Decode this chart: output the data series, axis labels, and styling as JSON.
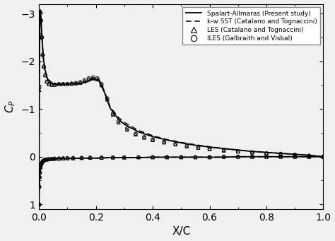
{
  "title": "",
  "xlabel": "X/C",
  "ylabel": "$C_P$",
  "xlim": [
    0,
    1.0
  ],
  "ylim": [
    1.1,
    -3.2
  ],
  "yticks": [
    -3,
    -2,
    -1,
    0,
    1
  ],
  "xticks": [
    0.0,
    0.2,
    0.4,
    0.6,
    0.8,
    1.0
  ],
  "line_color": "#000000",
  "background_color": "#f0f0f0",
  "figsize": [
    4.74,
    3.41
  ],
  "dpi": 100,
  "legend_labels": [
    "Spalart-Allmaras (Present study)",
    "k-w SST (Catalano and Tognaccini)",
    "LES (Catalano and Tognaccini)",
    "ILES (Galbraith and Visbal)"
  ],
  "upper_sa_x": [
    0.0,
    0.001,
    0.003,
    0.005,
    0.007,
    0.01,
    0.015,
    0.02,
    0.03,
    0.05,
    0.07,
    0.1,
    0.13,
    0.15,
    0.17,
    0.19,
    0.21,
    0.23,
    0.25,
    0.28,
    0.3,
    0.35,
    0.4,
    0.45,
    0.5,
    0.55,
    0.6,
    0.65,
    0.7,
    0.75,
    0.8,
    0.85,
    0.9,
    0.95,
    1.0
  ],
  "upper_sa_y": [
    1.0,
    -1.5,
    -2.8,
    -3.05,
    -2.9,
    -2.55,
    -2.1,
    -1.85,
    -1.63,
    -1.52,
    -1.52,
    -1.52,
    -1.53,
    -1.54,
    -1.57,
    -1.63,
    -1.6,
    -1.35,
    -1.02,
    -0.78,
    -0.68,
    -0.52,
    -0.42,
    -0.35,
    -0.29,
    -0.24,
    -0.2,
    -0.17,
    -0.14,
    -0.11,
    -0.09,
    -0.07,
    -0.05,
    -0.03,
    0.0
  ],
  "upper_kw_x": [
    0.0,
    0.001,
    0.003,
    0.005,
    0.007,
    0.01,
    0.015,
    0.02,
    0.03,
    0.05,
    0.07,
    0.1,
    0.13,
    0.15,
    0.17,
    0.19,
    0.21,
    0.23,
    0.25,
    0.28,
    0.3,
    0.35,
    0.4,
    0.45,
    0.5,
    0.55,
    0.6,
    0.65,
    0.7,
    0.75,
    0.8,
    0.85,
    0.9,
    0.95,
    1.0
  ],
  "upper_kw_y": [
    1.0,
    -1.5,
    -2.75,
    -3.0,
    -2.88,
    -2.52,
    -2.08,
    -1.83,
    -1.62,
    -1.52,
    -1.52,
    -1.52,
    -1.53,
    -1.54,
    -1.58,
    -1.65,
    -1.63,
    -1.38,
    -1.05,
    -0.82,
    -0.72,
    -0.55,
    -0.44,
    -0.36,
    -0.3,
    -0.25,
    -0.21,
    -0.17,
    -0.14,
    -0.11,
    -0.09,
    -0.07,
    -0.05,
    -0.03,
    0.0
  ],
  "lower_sa_x": [
    0.0,
    0.001,
    0.003,
    0.005,
    0.007,
    0.01,
    0.015,
    0.02,
    0.03,
    0.05,
    0.07,
    0.1,
    0.15,
    0.2,
    0.25,
    0.3,
    0.35,
    0.4,
    0.45,
    0.5,
    0.55,
    0.6,
    0.65,
    0.7,
    0.75,
    0.8,
    0.85,
    0.9,
    0.95,
    1.0
  ],
  "lower_sa_y": [
    1.0,
    0.6,
    0.38,
    0.28,
    0.2,
    0.14,
    0.1,
    0.08,
    0.06,
    0.05,
    0.04,
    0.04,
    0.03,
    0.03,
    0.02,
    0.02,
    0.02,
    0.01,
    0.01,
    0.01,
    0.01,
    0.01,
    0.01,
    0.0,
    0.0,
    0.0,
    0.0,
    0.0,
    0.0,
    0.0
  ],
  "upper_scatter_x": [
    0.0,
    0.001,
    0.002,
    0.003,
    0.005,
    0.007,
    0.01,
    0.013,
    0.017,
    0.022,
    0.028,
    0.035,
    0.045,
    0.055,
    0.07,
    0.085,
    0.1,
    0.115,
    0.13,
    0.145,
    0.16,
    0.175,
    0.19,
    0.205,
    0.22,
    0.24,
    0.26,
    0.28,
    0.31,
    0.34,
    0.37,
    0.4,
    0.44,
    0.48,
    0.52,
    0.56,
    0.6,
    0.65,
    0.7,
    0.75,
    0.8,
    0.85,
    0.9,
    0.95,
    1.0
  ],
  "upper_les_y": [
    1.0,
    -1.4,
    -2.5,
    -2.82,
    -3.05,
    -2.88,
    -2.52,
    -2.15,
    -1.9,
    -1.72,
    -1.58,
    -1.52,
    -1.51,
    -1.51,
    -1.52,
    -1.52,
    -1.52,
    -1.53,
    -1.54,
    -1.55,
    -1.58,
    -1.62,
    -1.64,
    -1.62,
    -1.5,
    -1.2,
    -0.88,
    -0.72,
    -0.57,
    -0.47,
    -0.4,
    -0.35,
    -0.3,
    -0.26,
    -0.22,
    -0.19,
    -0.16,
    -0.13,
    -0.11,
    -0.09,
    -0.07,
    -0.05,
    -0.04,
    -0.02,
    0.0
  ],
  "upper_iles_y": [
    1.0,
    -1.45,
    -2.55,
    -2.85,
    -3.02,
    -2.85,
    -2.5,
    -2.13,
    -1.88,
    -1.7,
    -1.57,
    -1.52,
    -1.51,
    -1.51,
    -1.52,
    -1.52,
    -1.52,
    -1.53,
    -1.54,
    -1.56,
    -1.6,
    -1.64,
    -1.66,
    -1.64,
    -1.52,
    -1.22,
    -0.9,
    -0.74,
    -0.59,
    -0.48,
    -0.41,
    -0.36,
    -0.31,
    -0.27,
    -0.23,
    -0.19,
    -0.16,
    -0.14,
    -0.11,
    -0.09,
    -0.07,
    -0.06,
    -0.04,
    -0.02,
    0.0
  ],
  "lower_scatter_x": [
    0.0,
    0.001,
    0.002,
    0.003,
    0.005,
    0.007,
    0.01,
    0.013,
    0.017,
    0.022,
    0.028,
    0.035,
    0.045,
    0.055,
    0.07,
    0.085,
    0.1,
    0.12,
    0.15,
    0.18,
    0.22,
    0.26,
    0.3,
    0.35,
    0.4,
    0.45,
    0.5,
    0.55,
    0.6,
    0.65,
    0.7,
    0.75,
    0.8,
    0.85,
    0.9,
    0.95,
    1.0
  ],
  "lower_les_y": [
    1.0,
    0.62,
    0.42,
    0.32,
    0.22,
    0.16,
    0.12,
    0.09,
    0.07,
    0.06,
    0.055,
    0.05,
    0.045,
    0.04,
    0.04,
    0.035,
    0.03,
    0.03,
    0.025,
    0.02,
    0.02,
    0.015,
    0.015,
    0.01,
    0.01,
    0.01,
    0.01,
    0.01,
    0.01,
    0.0,
    0.0,
    0.0,
    0.0,
    0.0,
    0.0,
    0.0,
    0.0
  ],
  "lower_iles_y": [
    1.0,
    0.63,
    0.43,
    0.33,
    0.23,
    0.17,
    0.13,
    0.1,
    0.08,
    0.065,
    0.058,
    0.052,
    0.047,
    0.042,
    0.038,
    0.035,
    0.032,
    0.028,
    0.025,
    0.022,
    0.02,
    0.016,
    0.015,
    0.012,
    0.01,
    0.01,
    0.01,
    0.01,
    0.01,
    0.0,
    0.0,
    0.0,
    0.0,
    0.0,
    0.0,
    0.0,
    0.0
  ]
}
